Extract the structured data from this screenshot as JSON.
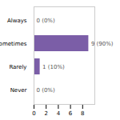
{
  "chart_data": {
    "type": "bar",
    "orientation": "horizontal",
    "categories": [
      "Always",
      "Sometimes",
      "Rarely",
      "Never"
    ],
    "values": [
      0,
      9,
      1,
      0
    ],
    "value_labels": [
      "0 (0%)",
      "9 (90%)",
      "1 (10%)",
      "0 (0%)"
    ],
    "color": "#7B5EA7",
    "xlim": [
      0,
      10
    ],
    "xticks": [
      0,
      2,
      4,
      6,
      8
    ],
    "data_labels": true
  }
}
